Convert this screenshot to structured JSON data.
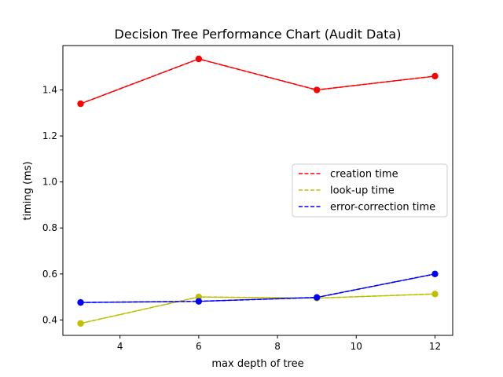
{
  "chart_data": {
    "type": "line",
    "title": "Decision Tree Performance Chart (Audit Data)",
    "xlabel": "max depth of tree",
    "ylabel": "timing (ms)",
    "x": [
      3,
      6,
      9,
      12
    ],
    "xlim": [
      2.55,
      12.45
    ],
    "ylim": [
      0.333,
      1.593
    ],
    "xticks": [
      4,
      6,
      8,
      10,
      12
    ],
    "yticks": [
      0.4,
      0.6,
      0.8,
      1.0,
      1.2,
      1.4
    ],
    "grid": false,
    "legend_position": "center-right",
    "series": [
      {
        "name": "creation time",
        "values": [
          1.34,
          1.535,
          1.4,
          1.46
        ],
        "color": "#ff0000"
      },
      {
        "name": "look-up time",
        "values": [
          0.385,
          0.5,
          0.495,
          0.513
        ],
        "color": "#bfbf00"
      },
      {
        "name": "error-correction time",
        "values": [
          0.476,
          0.481,
          0.498,
          0.6
        ],
        "color": "#0000ff"
      }
    ]
  }
}
